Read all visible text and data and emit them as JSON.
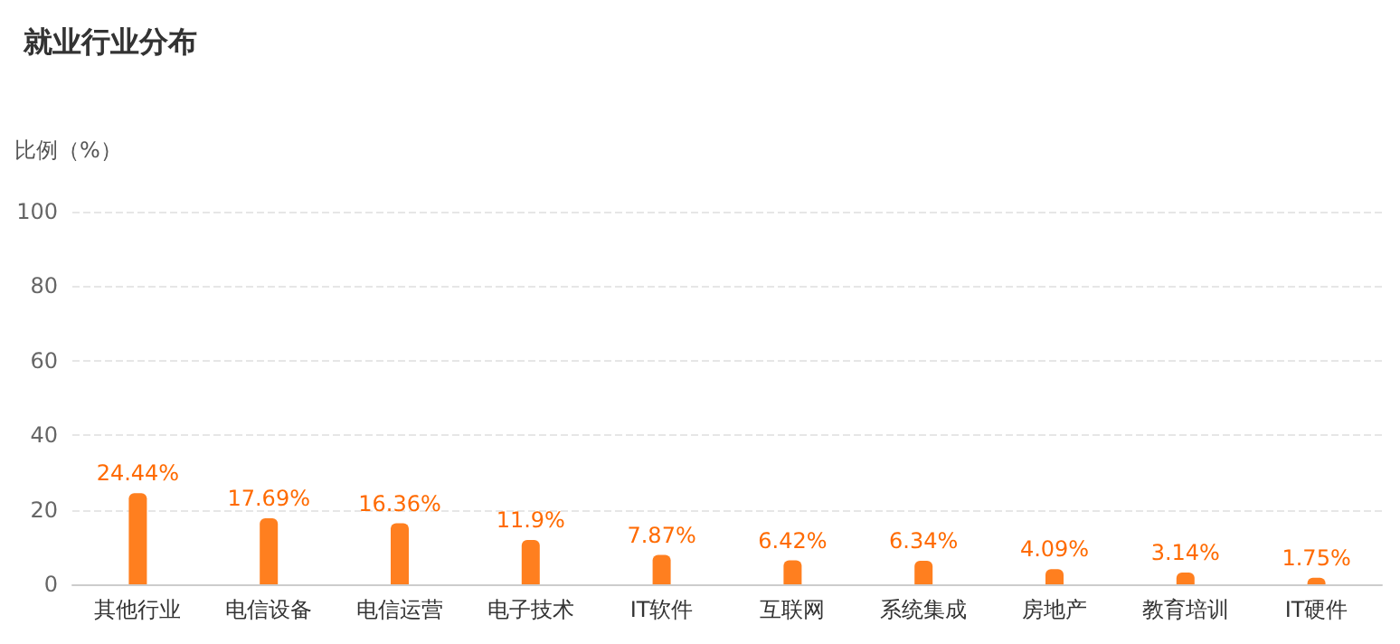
{
  "chart_data": {
    "type": "bar",
    "title": "就业行业分布",
    "ylabel": "比例（%）",
    "categories": [
      "其他行业",
      "电信设备",
      "电信运营",
      "电子技术",
      "IT软件",
      "互联网",
      "系统集成",
      "房地产",
      "教育培训",
      "IT硬件"
    ],
    "values": [
      24.44,
      17.69,
      16.36,
      11.9,
      7.87,
      6.42,
      6.34,
      4.09,
      3.14,
      1.75
    ],
    "value_labels": [
      "24.44%",
      "17.69%",
      "16.36%",
      "11.9%",
      "7.87%",
      "6.42%",
      "6.34%",
      "4.09%",
      "3.14%",
      "1.75%"
    ],
    "color": "#ff7f1f",
    "ylim": [
      0,
      100
    ],
    "yticks": [
      0,
      20,
      40,
      60,
      80,
      100
    ],
    "grid": "y"
  }
}
